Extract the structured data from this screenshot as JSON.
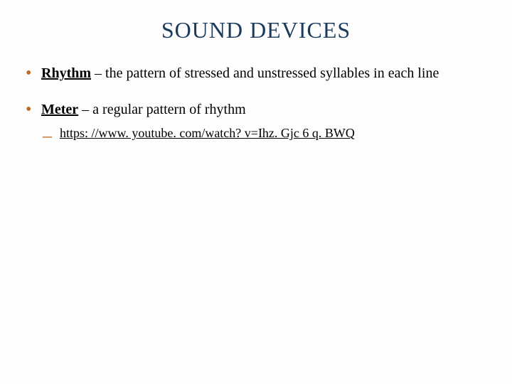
{
  "title": "SOUND DEVICES",
  "title_color": "#1b3a5c",
  "bullet_marker_color": "#b96a2a",
  "background_color": "#fdfdfd",
  "title_fontsize": 32,
  "body_fontsize": 20,
  "sub_fontsize": 18,
  "items": [
    {
      "term": "Rhythm",
      "separator": " – ",
      "definition": "the pattern of stressed and unstressed syllables in each line",
      "sub": []
    },
    {
      "term": "Meter",
      "separator": " – ",
      "definition": "a regular pattern of rhythm",
      "sub": [
        {
          "text": "https: //www. youtube. com/watch? v=Ihz. Gjc 6 q. BWQ",
          "is_link": true
        }
      ]
    }
  ]
}
